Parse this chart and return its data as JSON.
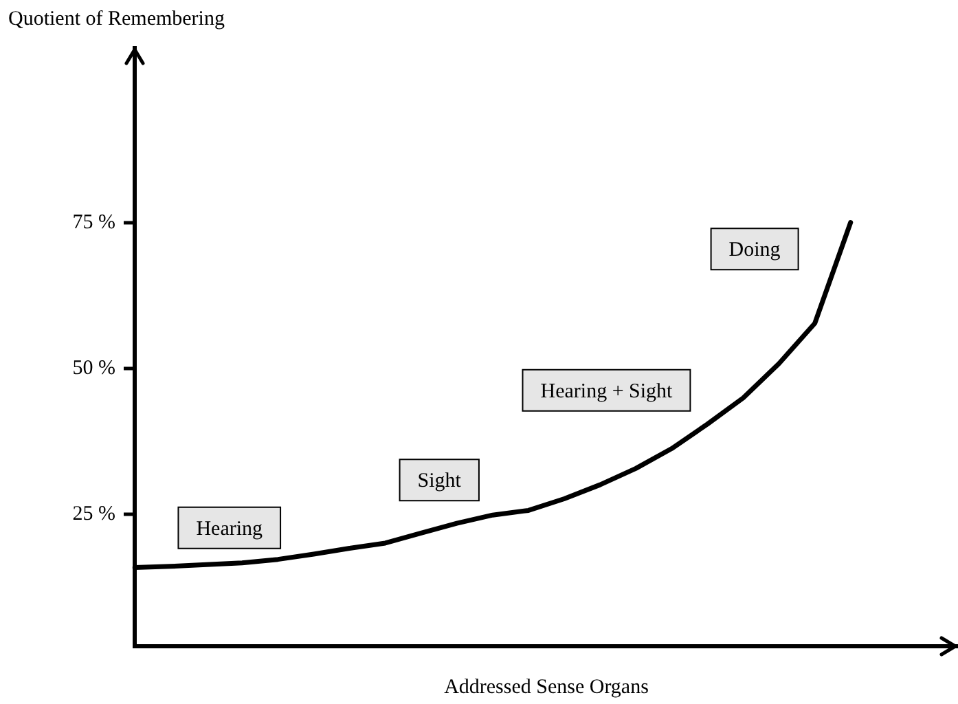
{
  "chart_data": {
    "type": "line",
    "ylabel": "Quotient of Remembering",
    "xlabel": "Addressed Sense Organs",
    "categories": [
      null,
      null,
      null,
      null,
      null,
      null,
      null,
      null,
      null,
      null,
      null,
      null,
      null,
      null,
      null,
      null,
      null,
      null,
      null,
      null,
      null,
      null,
      null,
      null
    ],
    "series": [
      {
        "color": "#000000",
        "values": [
          15.9,
          16.1,
          16.4,
          16.7,
          17.3,
          18.2,
          19.2,
          20.1,
          21.8,
          23.5,
          24.9,
          25.7,
          27.7,
          30.1,
          32.9,
          36.3,
          40.5,
          45.0,
          50.9,
          57.8,
          75.1,
          null,
          null,
          null
        ]
      }
    ],
    "ylim": [
      2.4,
      105
    ],
    "yticks": [
      {
        "value": 25,
        "label": "25 %"
      },
      {
        "value": 50,
        "label": "50 %"
      },
      {
        "value": 75,
        "label": "75 %"
      }
    ],
    "tick_labels": "y",
    "grid": false,
    "legend": false,
    "marker": "none",
    "line_style": "solid",
    "annotations": [
      "Hearing",
      "Sight",
      "Hearing + Sight",
      "Doing"
    ]
  }
}
